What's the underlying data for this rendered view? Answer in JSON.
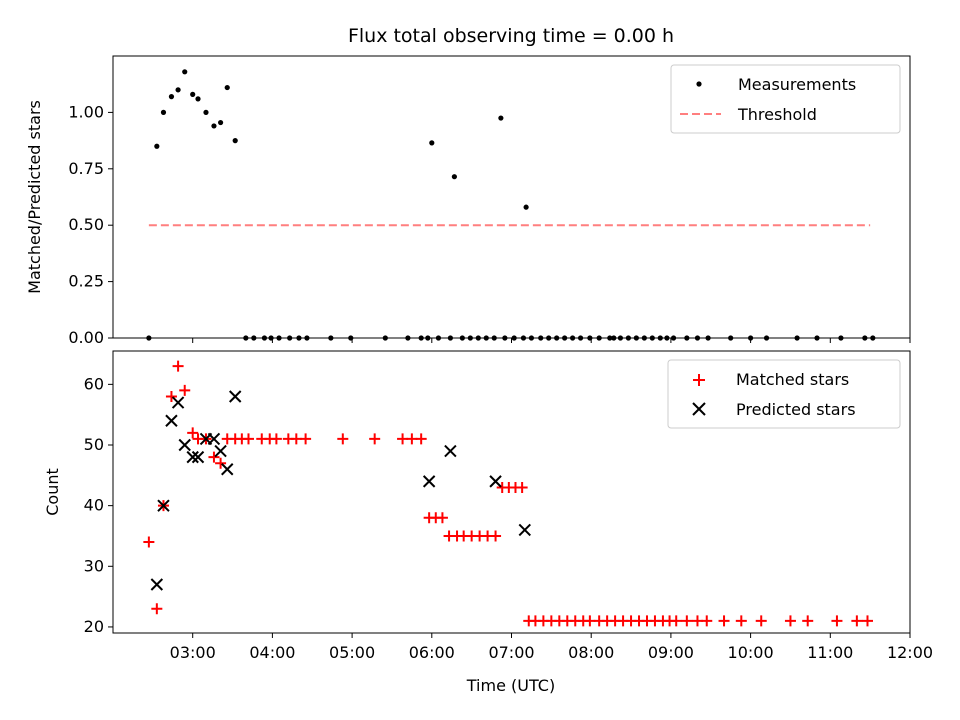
{
  "title": "Flux total observing time = 0.00 h",
  "colors": {
    "measurement": "#000000",
    "threshold": "#ff7f7f",
    "matched": "#ff0000",
    "predicted": "#000000"
  },
  "chart_data": [
    {
      "type": "scatter",
      "ylabel": "Matched/Predicted stars",
      "xlim": [
        "02:00",
        "12:00"
      ],
      "ylim": [
        0,
        1.25
      ],
      "y_ticks": [
        "0.00",
        "0.25",
        "0.50",
        "0.75",
        "1.00"
      ],
      "legend": {
        "placement": "top-right",
        "entries": [
          "Measurements",
          "Threshold"
        ]
      },
      "threshold": {
        "name": "Threshold",
        "value": 0.5,
        "x_range": [
          "02:27",
          "11:30"
        ]
      },
      "series": [
        {
          "name": "Measurements",
          "points": [
            [
              "02:27",
              0
            ],
            [
              "02:33",
              0.85
            ],
            [
              "02:38",
              1.0
            ],
            [
              "02:44",
              1.07
            ],
            [
              "02:49",
              1.1
            ],
            [
              "02:54",
              1.18
            ],
            [
              "03:00",
              1.08
            ],
            [
              "03:04",
              1.06
            ],
            [
              "03:10",
              1.0
            ],
            [
              "03:16",
              0.94
            ],
            [
              "03:21",
              0.955
            ],
            [
              "03:26",
              1.11
            ],
            [
              "03:32",
              0.875
            ],
            [
              "03:40",
              0
            ],
            [
              "03:46",
              0
            ],
            [
              "03:54",
              0
            ],
            [
              "03:59",
              0
            ],
            [
              "04:05",
              0
            ],
            [
              "04:13",
              0
            ],
            [
              "04:20",
              0
            ],
            [
              "04:26",
              0
            ],
            [
              "04:44",
              0
            ],
            [
              "04:59",
              0
            ],
            [
              "05:25",
              0
            ],
            [
              "05:42",
              0
            ],
            [
              "05:52",
              0
            ],
            [
              "05:57",
              0
            ],
            [
              "06:00",
              0.865
            ],
            [
              "06:05",
              0
            ],
            [
              "06:14",
              0
            ],
            [
              "06:17",
              0.715
            ],
            [
              "06:23",
              0
            ],
            [
              "06:29",
              0
            ],
            [
              "06:35",
              0
            ],
            [
              "06:41",
              0
            ],
            [
              "06:47",
              0
            ],
            [
              "06:52",
              0.975
            ],
            [
              "06:55",
              0
            ],
            [
              "07:02",
              0
            ],
            [
              "07:09",
              0
            ],
            [
              "07:11",
              0.58
            ],
            [
              "07:15",
              0
            ],
            [
              "07:22",
              0
            ],
            [
              "07:28",
              0
            ],
            [
              "07:34",
              0
            ],
            [
              "07:40",
              0
            ],
            [
              "07:46",
              0
            ],
            [
              "07:52",
              0
            ],
            [
              "07:59",
              0
            ],
            [
              "08:06",
              0
            ],
            [
              "08:14",
              0
            ],
            [
              "08:17",
              0
            ],
            [
              "08:22",
              0
            ],
            [
              "08:28",
              0
            ],
            [
              "08:34",
              0
            ],
            [
              "08:40",
              0
            ],
            [
              "08:46",
              0
            ],
            [
              "08:52",
              0
            ],
            [
              "08:57",
              0
            ],
            [
              "09:02",
              0
            ],
            [
              "09:12",
              0
            ],
            [
              "09:20",
              0
            ],
            [
              "09:28",
              0
            ],
            [
              "09:45",
              0
            ],
            [
              "10:00",
              0
            ],
            [
              "10:12",
              0
            ],
            [
              "10:35",
              0
            ],
            [
              "10:50",
              0
            ],
            [
              "11:08",
              0
            ],
            [
              "11:26",
              0
            ],
            [
              "11:32",
              0
            ]
          ]
        }
      ]
    },
    {
      "type": "scatter",
      "xlabel": "Time (UTC)",
      "ylabel": "Count",
      "xlim": [
        "02:00",
        "12:00"
      ],
      "ylim": [
        19,
        65.5
      ],
      "x_ticks": [
        "03:00",
        "04:00",
        "05:00",
        "06:00",
        "07:00",
        "08:00",
        "09:00",
        "10:00",
        "11:00",
        "12:00"
      ],
      "y_ticks": [
        "20",
        "30",
        "40",
        "50",
        "60"
      ],
      "legend": {
        "placement": "top-right",
        "entries": [
          "Matched stars",
          "Predicted stars"
        ]
      },
      "series": [
        {
          "name": "Matched stars",
          "points": [
            [
              "02:27",
              34
            ],
            [
              "02:33",
              23
            ],
            [
              "02:38",
              40
            ],
            [
              "02:44",
              58
            ],
            [
              "02:49",
              63
            ],
            [
              "02:54",
              59
            ],
            [
              "03:00",
              52
            ],
            [
              "03:04",
              51
            ],
            [
              "03:10",
              51
            ],
            [
              "03:16",
              48
            ],
            [
              "03:21",
              47
            ],
            [
              "03:26",
              51
            ],
            [
              "03:32",
              51
            ],
            [
              "03:37",
              51
            ],
            [
              "03:42",
              51
            ],
            [
              "03:52",
              51
            ],
            [
              "03:58",
              51
            ],
            [
              "04:03",
              51
            ],
            [
              "04:12",
              51
            ],
            [
              "04:18",
              51
            ],
            [
              "04:25",
              51
            ],
            [
              "04:53",
              51
            ],
            [
              "05:17",
              51
            ],
            [
              "05:38",
              51
            ],
            [
              "05:45",
              51
            ],
            [
              "05:52",
              51
            ],
            [
              "05:58",
              38
            ],
            [
              "06:03",
              38
            ],
            [
              "06:08",
              38
            ],
            [
              "06:13",
              35
            ],
            [
              "06:19",
              35
            ],
            [
              "06:24",
              35
            ],
            [
              "06:30",
              35
            ],
            [
              "06:36",
              35
            ],
            [
              "06:42",
              35
            ],
            [
              "06:48",
              35
            ],
            [
              "06:53",
              43
            ],
            [
              "06:58",
              43
            ],
            [
              "07:03",
              43
            ],
            [
              "07:08",
              43
            ],
            [
              "07:13",
              21
            ],
            [
              "07:18",
              21
            ],
            [
              "07:24",
              21
            ],
            [
              "07:30",
              21
            ],
            [
              "07:36",
              21
            ],
            [
              "07:42",
              21
            ],
            [
              "07:48",
              21
            ],
            [
              "07:54",
              21
            ],
            [
              "07:59",
              21
            ],
            [
              "08:06",
              21
            ],
            [
              "08:12",
              21
            ],
            [
              "08:18",
              21
            ],
            [
              "08:24",
              21
            ],
            [
              "08:30",
              21
            ],
            [
              "08:36",
              21
            ],
            [
              "08:42",
              21
            ],
            [
              "08:48",
              21
            ],
            [
              "08:54",
              21
            ],
            [
              "08:59",
              21
            ],
            [
              "09:04",
              21
            ],
            [
              "09:12",
              21
            ],
            [
              "09:20",
              21
            ],
            [
              "09:27",
              21
            ],
            [
              "09:40",
              21
            ],
            [
              "09:53",
              21
            ],
            [
              "10:08",
              21
            ],
            [
              "10:30",
              21
            ],
            [
              "10:43",
              21
            ],
            [
              "11:05",
              21
            ],
            [
              "11:20",
              21
            ],
            [
              "11:28",
              21
            ]
          ]
        },
        {
          "name": "Predicted stars",
          "points": [
            [
              "02:33",
              27
            ],
            [
              "02:38",
              40
            ],
            [
              "02:44",
              54
            ],
            [
              "02:49",
              57
            ],
            [
              "02:54",
              50
            ],
            [
              "03:00",
              48
            ],
            [
              "03:04",
              48
            ],
            [
              "03:10",
              51
            ],
            [
              "03:16",
              51
            ],
            [
              "03:21",
              49
            ],
            [
              "03:26",
              46
            ],
            [
              "03:32",
              58
            ],
            [
              "05:58",
              44
            ],
            [
              "06:14",
              49
            ],
            [
              "06:48",
              44
            ],
            [
              "07:10",
              36
            ]
          ]
        }
      ]
    }
  ]
}
